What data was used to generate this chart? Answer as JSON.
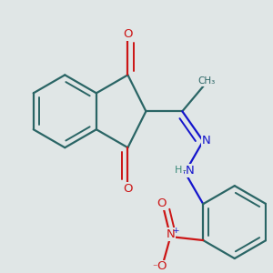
{
  "bg_color": "#e0e6e6",
  "dc": "#2a6565",
  "bc": "#1515cc",
  "rc": "#cc1515",
  "lw": 1.6,
  "dbo": 0.03,
  "fs": 9.5,
  "fss": 7.5,
  "figsize": [
    3.0,
    3.0
  ],
  "dpi": 100,
  "xlim": [
    0.05,
    1.3
  ],
  "ylim": [
    0.02,
    1.28
  ]
}
